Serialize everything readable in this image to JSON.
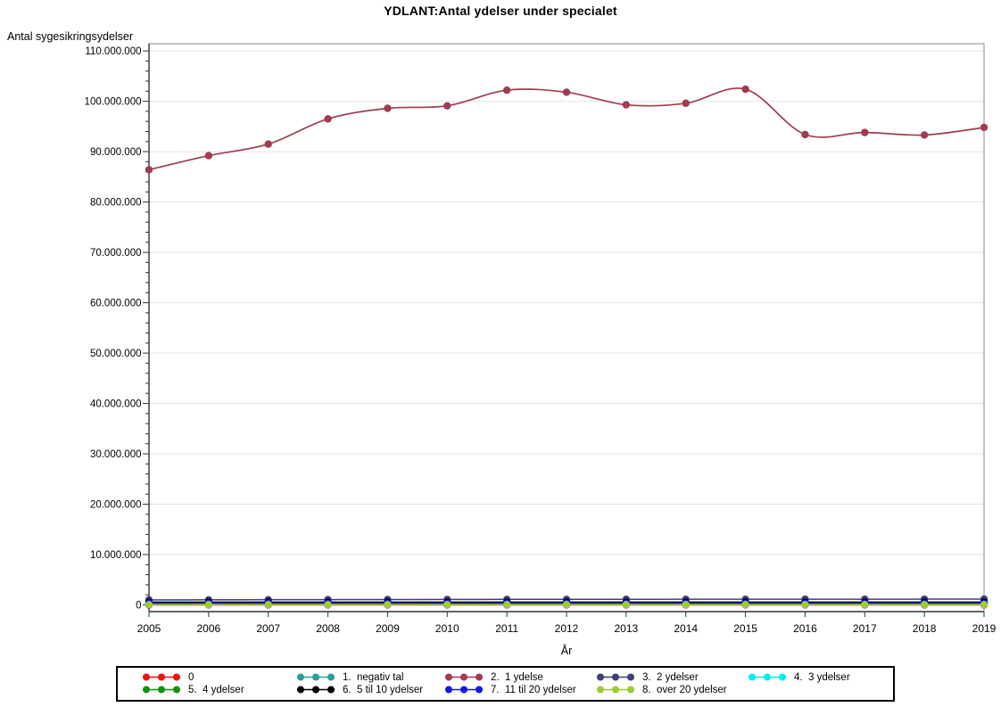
{
  "chart_data": {
    "type": "line",
    "title": "YDLANT:Antal ydelser under specialet",
    "xlabel": "År",
    "ylabel": "Antal sygesikringsydelser",
    "x": [
      2005,
      2006,
      2007,
      2008,
      2009,
      2010,
      2011,
      2012,
      2013,
      2014,
      2015,
      2016,
      2017,
      2018,
      2019
    ],
    "x_tick_labels": [
      "2005",
      "2006",
      "2007",
      "2008",
      "2009",
      "2010",
      "2011",
      "2012",
      "2013",
      "2014",
      "2015",
      "2016",
      "2017",
      "2018",
      "2019"
    ],
    "ylim": [
      0,
      110000000
    ],
    "y_tick_step": 10000000,
    "y_minor_tick_step": 2000000,
    "y_tick_labels": [
      "0",
      "10.000.000",
      "20.000.000",
      "30.000.000",
      "40.000.000",
      "50.000.000",
      "60.000.000",
      "70.000.000",
      "80.000.000",
      "90.000.000",
      "100.000.000",
      "110.000.000"
    ],
    "grid": "horizontal",
    "legend_position": "bottom",
    "interpolation": "spline",
    "series": [
      {
        "name": "0",
        "color": "#EE1111",
        "values": [
          0,
          0,
          0,
          0,
          0,
          0,
          0,
          0,
          0,
          0,
          0,
          0,
          0,
          0,
          0
        ]
      },
      {
        "name": "1.  negativ tal",
        "color": "#2A9D9D",
        "values": [
          160000,
          160000,
          160000,
          160000,
          160000,
          160000,
          160000,
          160000,
          160000,
          160000,
          160000,
          160000,
          160000,
          160000,
          160000
        ]
      },
      {
        "name": "2.  1 ydelse",
        "color": "#A03B50",
        "values": [
          86400000,
          89200000,
          91500000,
          96500000,
          98600000,
          99100000,
          102200000,
          101800000,
          99300000,
          99600000,
          102400000,
          93400000,
          93800000,
          93300000,
          94800000
        ]
      },
      {
        "name": "3.  2 ydelser",
        "color": "#3F3F78",
        "values": [
          1000000,
          1010000,
          1030000,
          1050000,
          1060000,
          1080000,
          1100000,
          1100000,
          1110000,
          1120000,
          1120000,
          1130000,
          1130000,
          1140000,
          1150000
        ]
      },
      {
        "name": "4.  3 ydelser",
        "color": "#00EDF2",
        "values": [
          300000,
          300000,
          300000,
          300000,
          300000,
          300000,
          300000,
          300000,
          300000,
          300000,
          300000,
          300000,
          300000,
          300000,
          300000
        ]
      },
      {
        "name": "5.  4 ydelser",
        "color": "#109310",
        "values": [
          120000,
          120000,
          120000,
          120000,
          120000,
          120000,
          120000,
          120000,
          120000,
          120000,
          120000,
          120000,
          120000,
          120000,
          120000
        ]
      },
      {
        "name": "6.  5 til 10 ydelser",
        "color": "#000000",
        "values": [
          560000,
          560000,
          560000,
          560000,
          560000,
          560000,
          560000,
          560000,
          560000,
          560000,
          560000,
          560000,
          560000,
          560000,
          560000
        ]
      },
      {
        "name": "7.  11 til 20 ydelser",
        "color": "#1515F0",
        "values": [
          330000,
          330000,
          330000,
          330000,
          330000,
          330000,
          330000,
          330000,
          330000,
          330000,
          330000,
          330000,
          330000,
          330000,
          330000
        ]
      },
      {
        "name": "8.  over 20 ydelser",
        "color": "#9ACD32",
        "values": [
          60000,
          60000,
          60000,
          60000,
          60000,
          60000,
          60000,
          60000,
          60000,
          60000,
          60000,
          60000,
          60000,
          60000,
          60000
        ]
      }
    ]
  }
}
